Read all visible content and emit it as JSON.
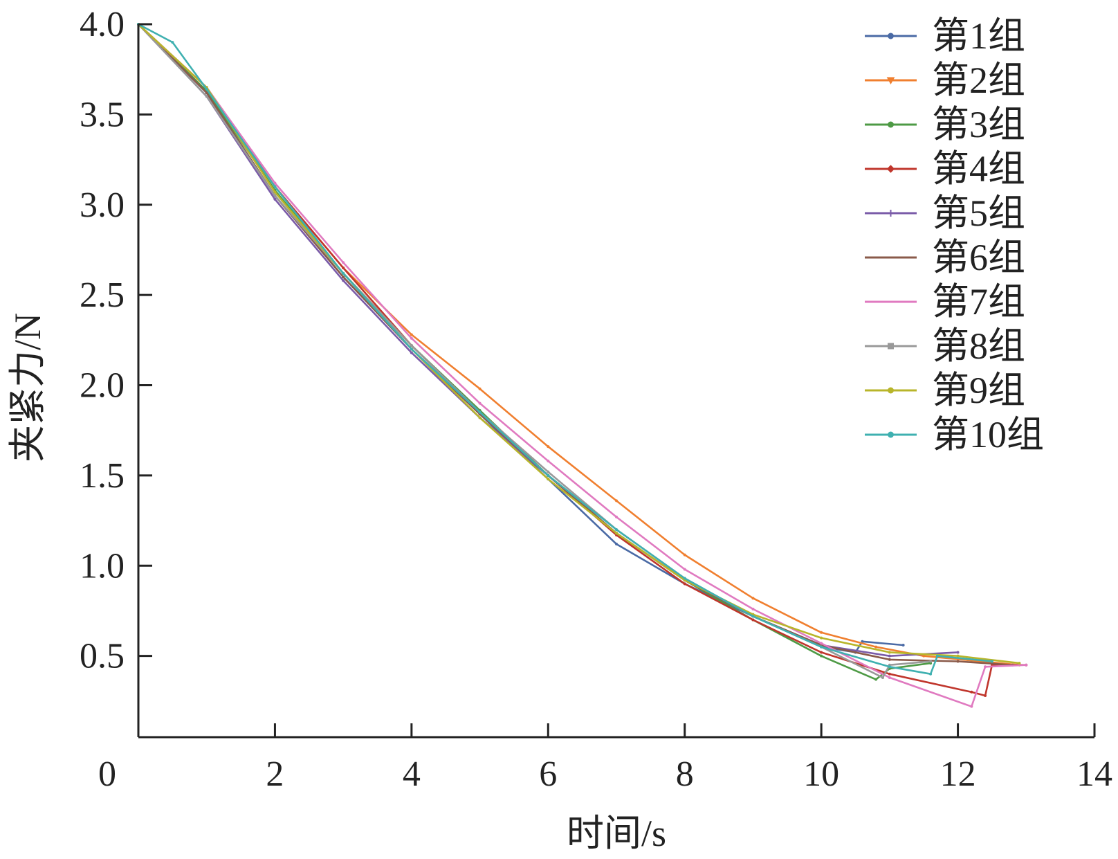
{
  "chart_data": {
    "type": "line",
    "xlabel": "时间/s",
    "ylabel": "夹紧力/N",
    "xlim": [
      0,
      14
    ],
    "ylim": [
      0.05,
      4.0
    ],
    "xticks": [
      0,
      2,
      4,
      6,
      8,
      10,
      12,
      14
    ],
    "xtick_labels": [
      "0",
      "2",
      "4",
      "6",
      "8",
      "10",
      "12",
      "14"
    ],
    "yticks": [
      0.5,
      1.0,
      1.5,
      2.0,
      2.5,
      3.0,
      3.5,
      4.0
    ],
    "ytick_labels": [
      "0.5",
      "1.0",
      "1.5",
      "2.0",
      "2.5",
      "3.0",
      "3.5",
      "4.0"
    ],
    "grid": false,
    "legend_position": "top-right",
    "series": [
      {
        "name": "第1组",
        "color": "#4a6aa5",
        "marker": "circle",
        "points": [
          [
            0,
            4.0
          ],
          [
            1,
            3.62
          ],
          [
            2,
            3.05
          ],
          [
            3,
            2.6
          ],
          [
            4,
            2.2
          ],
          [
            5,
            1.84
          ],
          [
            6,
            1.48
          ],
          [
            7,
            1.12
          ],
          [
            8,
            0.9
          ],
          [
            9,
            0.72
          ],
          [
            10,
            0.55
          ],
          [
            10.5,
            0.52
          ],
          [
            10.6,
            0.58
          ],
          [
            11.2,
            0.56
          ]
        ]
      },
      {
        "name": "第2组",
        "color": "#f07f2f",
        "marker": "triangle-down",
        "points": [
          [
            0,
            4.0
          ],
          [
            1,
            3.63
          ],
          [
            2,
            3.1
          ],
          [
            3,
            2.65
          ],
          [
            4,
            2.28
          ],
          [
            5,
            1.98
          ],
          [
            6,
            1.66
          ],
          [
            7,
            1.36
          ],
          [
            8,
            1.06
          ],
          [
            9,
            0.82
          ],
          [
            10,
            0.63
          ],
          [
            10.8,
            0.55
          ],
          [
            11.5,
            0.5
          ],
          [
            12.9,
            0.45
          ]
        ]
      },
      {
        "name": "第3组",
        "color": "#4e9a45",
        "marker": "circle",
        "points": [
          [
            0,
            4.0
          ],
          [
            1,
            3.63
          ],
          [
            2,
            3.08
          ],
          [
            3,
            2.62
          ],
          [
            4,
            2.22
          ],
          [
            5,
            1.86
          ],
          [
            6,
            1.5
          ],
          [
            7,
            1.18
          ],
          [
            8,
            0.92
          ],
          [
            9,
            0.7
          ],
          [
            10,
            0.5
          ],
          [
            10.8,
            0.37
          ],
          [
            11.0,
            0.43
          ],
          [
            11.6,
            0.46
          ]
        ]
      },
      {
        "name": "第4组",
        "color": "#c0362c",
        "marker": "diamond",
        "points": [
          [
            0,
            4.0
          ],
          [
            1,
            3.65
          ],
          [
            2,
            3.1
          ],
          [
            3,
            2.65
          ],
          [
            4,
            2.22
          ],
          [
            5,
            1.85
          ],
          [
            6,
            1.5
          ],
          [
            7,
            1.17
          ],
          [
            8,
            0.9
          ],
          [
            9,
            0.7
          ],
          [
            10,
            0.52
          ],
          [
            11,
            0.4
          ],
          [
            12.2,
            0.3
          ],
          [
            12.4,
            0.28
          ],
          [
            12.5,
            0.45
          ],
          [
            13.0,
            0.45
          ]
        ]
      },
      {
        "name": "第5组",
        "color": "#7a5ba8",
        "marker": "plus",
        "points": [
          [
            0,
            4.0
          ],
          [
            1,
            3.6
          ],
          [
            2,
            3.03
          ],
          [
            3,
            2.58
          ],
          [
            4,
            2.18
          ],
          [
            5,
            1.82
          ],
          [
            6,
            1.5
          ],
          [
            7,
            1.18
          ],
          [
            8,
            0.92
          ],
          [
            9,
            0.72
          ],
          [
            10,
            0.56
          ],
          [
            11,
            0.5
          ],
          [
            12,
            0.52
          ]
        ]
      },
      {
        "name": "第6组",
        "color": "#8a5a4a",
        "marker": "dash",
        "points": [
          [
            0,
            4.0
          ],
          [
            1,
            3.62
          ],
          [
            2,
            3.05
          ],
          [
            3,
            2.6
          ],
          [
            4,
            2.2
          ],
          [
            5,
            1.84
          ],
          [
            6,
            1.5
          ],
          [
            7,
            1.18
          ],
          [
            8,
            0.92
          ],
          [
            9,
            0.72
          ],
          [
            10,
            0.56
          ],
          [
            11,
            0.48
          ],
          [
            12,
            0.47
          ],
          [
            12.8,
            0.45
          ]
        ]
      },
      {
        "name": "第7组",
        "color": "#e07ac0",
        "marker": "none",
        "points": [
          [
            0,
            4.0
          ],
          [
            1,
            3.65
          ],
          [
            2,
            3.12
          ],
          [
            3,
            2.68
          ],
          [
            4,
            2.26
          ],
          [
            5,
            1.9
          ],
          [
            6,
            1.58
          ],
          [
            7,
            1.27
          ],
          [
            8,
            0.98
          ],
          [
            9,
            0.76
          ],
          [
            10,
            0.57
          ],
          [
            11,
            0.38
          ],
          [
            12.2,
            0.22
          ],
          [
            12.4,
            0.44
          ],
          [
            13.0,
            0.45
          ]
        ]
      },
      {
        "name": "第8组",
        "color": "#999999",
        "marker": "square",
        "points": [
          [
            0,
            4.0
          ],
          [
            1,
            3.6
          ],
          [
            2,
            3.05
          ],
          [
            3,
            2.62
          ],
          [
            4,
            2.22
          ],
          [
            5,
            1.85
          ],
          [
            6,
            1.52
          ],
          [
            7,
            1.2
          ],
          [
            8,
            0.93
          ],
          [
            9,
            0.72
          ],
          [
            10,
            0.55
          ],
          [
            10.9,
            0.38
          ],
          [
            11.0,
            0.45
          ],
          [
            11.6,
            0.47
          ]
        ]
      },
      {
        "name": "第9组",
        "color": "#b8b52a",
        "marker": "circle",
        "points": [
          [
            0,
            4.0
          ],
          [
            1,
            3.65
          ],
          [
            2,
            3.07
          ],
          [
            3,
            2.62
          ],
          [
            4,
            2.2
          ],
          [
            5,
            1.82
          ],
          [
            6,
            1.48
          ],
          [
            7,
            1.18
          ],
          [
            8,
            0.92
          ],
          [
            9,
            0.73
          ],
          [
            10,
            0.6
          ],
          [
            11,
            0.52
          ],
          [
            12,
            0.5
          ],
          [
            12.9,
            0.46
          ]
        ]
      },
      {
        "name": "第10组",
        "color": "#3fb0b0",
        "marker": "circle",
        "points": [
          [
            0,
            4.0
          ],
          [
            0.5,
            3.9
          ],
          [
            1,
            3.64
          ],
          [
            2,
            3.1
          ],
          [
            3,
            2.62
          ],
          [
            4,
            2.2
          ],
          [
            5,
            1.85
          ],
          [
            6,
            1.5
          ],
          [
            7,
            1.2
          ],
          [
            8,
            0.93
          ],
          [
            9,
            0.72
          ],
          [
            10,
            0.55
          ],
          [
            11,
            0.44
          ],
          [
            11.6,
            0.4
          ],
          [
            11.7,
            0.5
          ],
          [
            12.5,
            0.47
          ]
        ]
      }
    ]
  }
}
